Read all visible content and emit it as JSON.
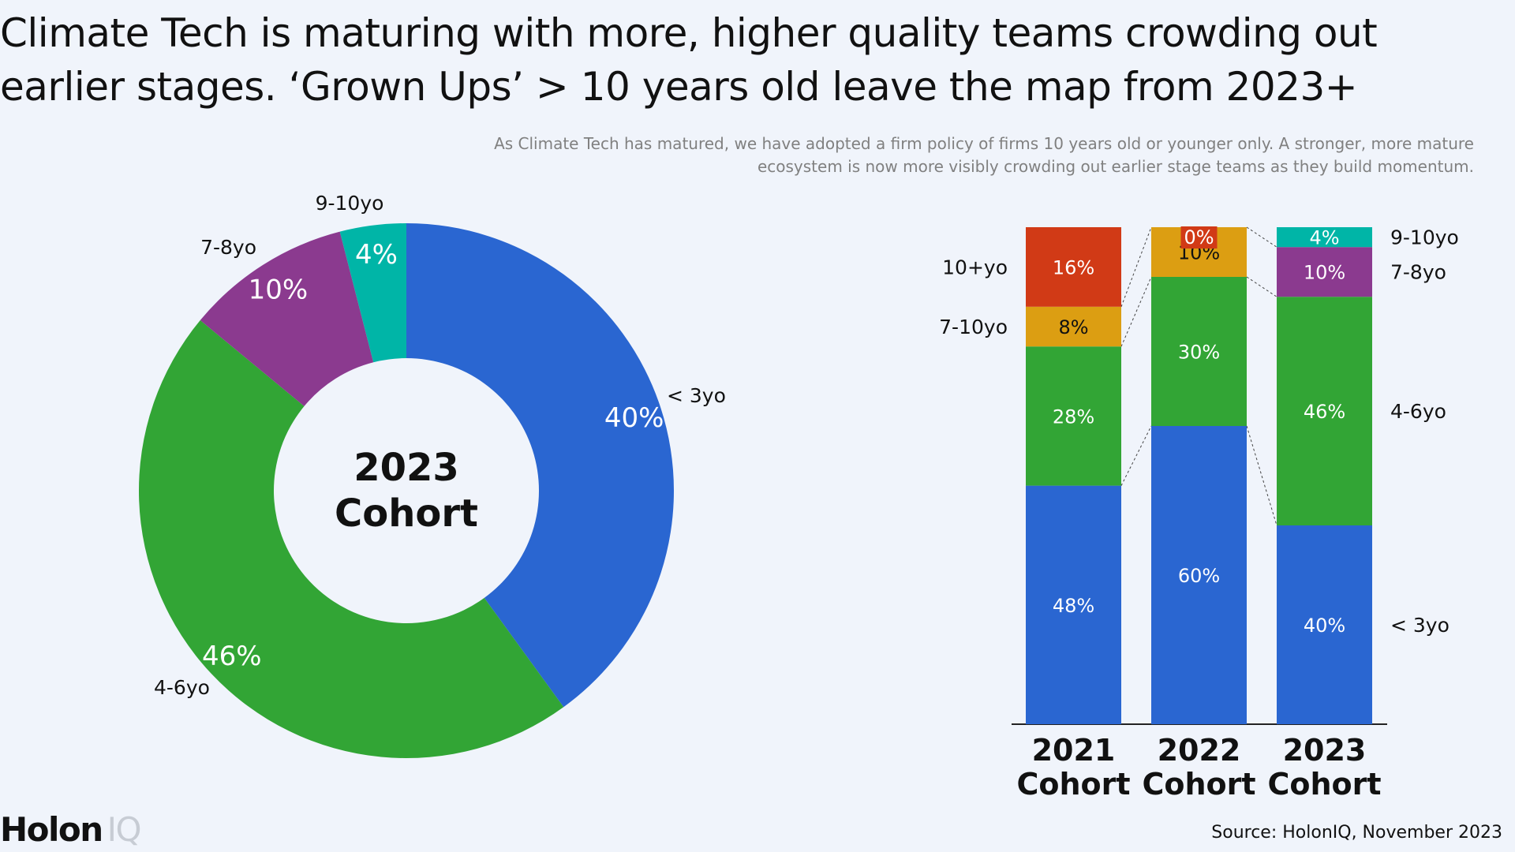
{
  "title": "Climate Tech is maturing with more, higher quality teams crowding out earlier stages. ‘Grown Ups’ > 10 years old leave the map from 2023+",
  "subtitle": "As Climate Tech has matured, we have adopted a firm policy of firms 10 years old or younger only. A stronger, more mature ecosystem is now more visibly crowding out earlier stage teams as they build momentum.",
  "source": "Source: HolonIQ, November 2023",
  "logo": {
    "bold": "Holon",
    "light": "IQ"
  },
  "chart_data": [
    {
      "type": "pie",
      "center_label": [
        "2023",
        "Cohort"
      ],
      "slices": [
        {
          "label": "< 3yo",
          "value": 40,
          "value_label": "40%",
          "color": "#2a66d1"
        },
        {
          "label": "4-6yo",
          "value": 46,
          "value_label": "46%",
          "color": "#32a535"
        },
        {
          "label": "7-8yo",
          "value": 10,
          "value_label": "10%",
          "color": "#8b3a8f"
        },
        {
          "label": "9-10yo",
          "value": 4,
          "value_label": "4%",
          "color": "#00b5a7"
        }
      ]
    },
    {
      "type": "bar",
      "stacked": true,
      "categories": [
        [
          "2021",
          "Cohort"
        ],
        [
          "2022",
          "Cohort"
        ],
        [
          "2023",
          "Cohort"
        ]
      ],
      "bars": [
        {
          "category": "2021 Cohort",
          "segments": [
            {
              "label": "< 3yo",
              "value": 48,
              "value_label": "48%",
              "color": "#2a66d1"
            },
            {
              "label": "4-6yo",
              "value": 28,
              "value_label": "28%",
              "color": "#32a535"
            },
            {
              "label": "7-10yo",
              "value": 8,
              "value_label": "8%",
              "color": "#dc9e12"
            },
            {
              "label": "10+yo",
              "value": 16,
              "value_label": "16%",
              "color": "#d13a16"
            }
          ]
        },
        {
          "category": "2022 Cohort",
          "segments": [
            {
              "label": "< 3yo",
              "value": 60,
              "value_label": "60%",
              "color": "#2a66d1"
            },
            {
              "label": "4-6yo",
              "value": 30,
              "value_label": "30%",
              "color": "#32a535"
            },
            {
              "label": "7-10yo",
              "value": 10,
              "value_label": "10%",
              "color": "#dc9e12"
            },
            {
              "label": "10+yo",
              "value": 0,
              "value_label": "0%",
              "color": "#d13a16"
            }
          ]
        },
        {
          "category": "2023 Cohort",
          "segments": [
            {
              "label": "< 3yo",
              "value": 40,
              "value_label": "40%",
              "color": "#2a66d1"
            },
            {
              "label": "4-6yo",
              "value": 46,
              "value_label": "46%",
              "color": "#32a535"
            },
            {
              "label": "7-8yo",
              "value": 10,
              "value_label": "10%",
              "color": "#8b3a8f"
            },
            {
              "label": "9-10yo",
              "value": 4,
              "value_label": "4%",
              "color": "#00b5a7"
            }
          ]
        }
      ],
      "left_labels": [
        "10+yo",
        "7-10yo"
      ],
      "right_labels": [
        "9-10yo",
        "7-8yo",
        "4-6yo",
        "< 3yo"
      ]
    }
  ]
}
